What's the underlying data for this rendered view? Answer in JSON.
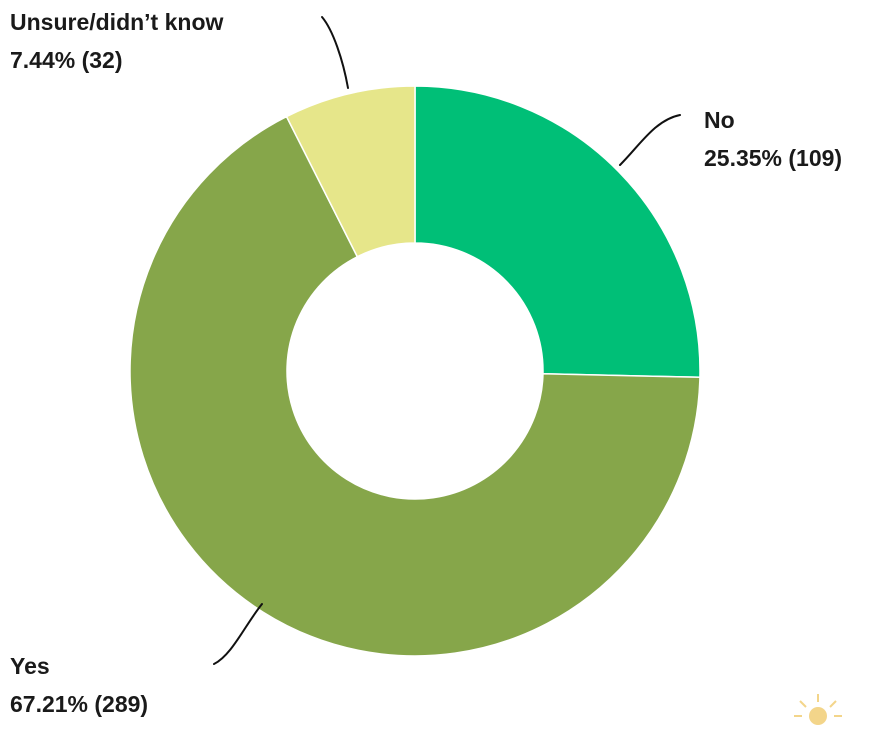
{
  "chart_data": {
    "type": "pie",
    "donut": true,
    "slices": [
      {
        "label": "No",
        "percent_text": "25.35% (109)",
        "value": 109,
        "percent": 25.35,
        "color": "#00bf77"
      },
      {
        "label": "Yes",
        "percent_text": "67.21% (289)",
        "value": 289,
        "percent": 67.21,
        "color": "#86a64a"
      },
      {
        "label": "Unsure/didn’t know",
        "percent_text": "7.44% (32)",
        "value": 32,
        "percent": 7.44,
        "color": "#e6e68a"
      }
    ],
    "start_angle": "top",
    "direction": "clockwise",
    "legend": "none"
  }
}
